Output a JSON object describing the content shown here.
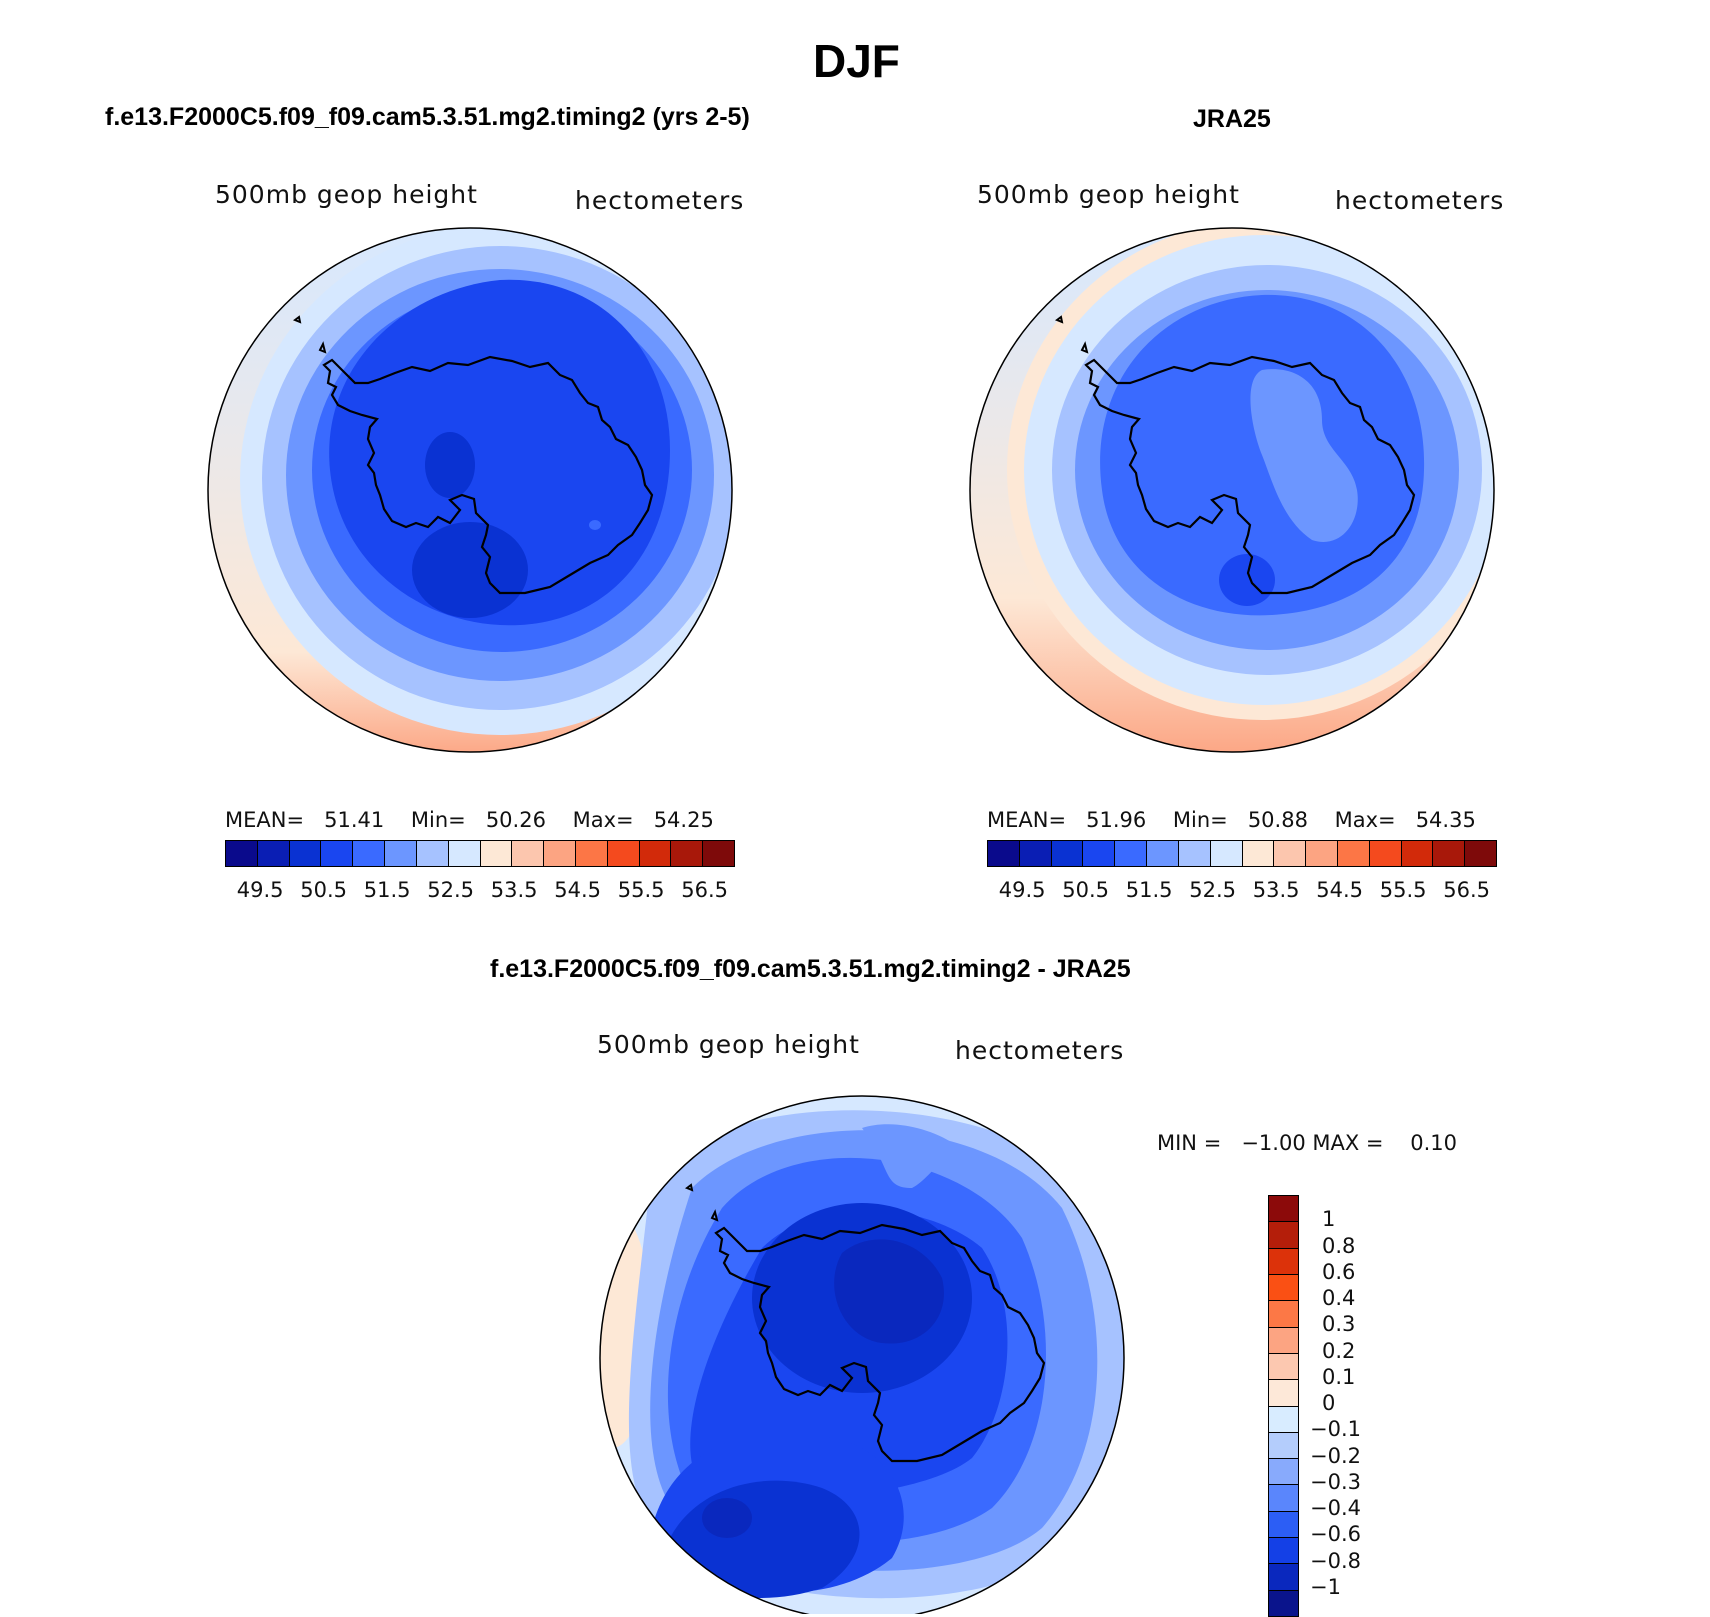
{
  "figure": {
    "title": "DJF"
  },
  "panels": {
    "model": {
      "title": "f.e13.F2000C5.f09_f09.cam5.3.51.mg2.timing2 (yrs 2-5)",
      "variable": "500mb geop height",
      "units": "hectometers",
      "mean_label": "MEAN=",
      "mean": "51.41",
      "min_label": "Min=",
      "min": "50.26",
      "max_label": "Max=",
      "max": "54.25"
    },
    "obs": {
      "title": "JRA25",
      "variable": "500mb geop height",
      "units": "hectometers",
      "mean_label": "MEAN=",
      "mean": "51.96",
      "min_label": "Min=",
      "min": "50.88",
      "max_label": "Max=",
      "max": "54.35"
    },
    "diff": {
      "title": "f.e13.F2000C5.f09_f09.cam5.3.51.mg2.timing2 - JRA25",
      "variable": "500mb geop height",
      "units": "hectometers",
      "min_label": "MIN =",
      "min": "−1.00",
      "max_label": "MAX =",
      "max": "0.10"
    }
  },
  "abs_colorbar": {
    "colors": [
      "#0a0a8c",
      "#0a1eb4",
      "#0a32d2",
      "#1a46f0",
      "#3a6aff",
      "#6c96ff",
      "#a6c2ff",
      "#d6e8ff",
      "#fde8d6",
      "#fcc6ae",
      "#fca482",
      "#fc7646",
      "#f44a1e",
      "#d22a0a",
      "#a8180a",
      "#7e0a0a"
    ],
    "labels": [
      "49.5",
      "50.5",
      "51.5",
      "52.5",
      "53.5",
      "54.5",
      "55.5",
      "56.5"
    ]
  },
  "diff_colorbar": {
    "colors_top_to_bottom": [
      "#8c0a0a",
      "#b41e0a",
      "#dc320a",
      "#fa5014",
      "#fc7846",
      "#fca482",
      "#fcc8b0",
      "#fde8d8",
      "#d8ecff",
      "#b4cdfc",
      "#88aafc",
      "#5a86fc",
      "#2c5ef5",
      "#1440e6",
      "#0a28be",
      "#0a148c"
    ],
    "labels": [
      "1",
      "0.8",
      "0.6",
      "0.4",
      "0.3",
      "0.2",
      "0.1",
      "0",
      "−0.1",
      "−0.2",
      "−0.3",
      "−0.4",
      "−0.6",
      "−0.8",
      "−1"
    ]
  }
}
